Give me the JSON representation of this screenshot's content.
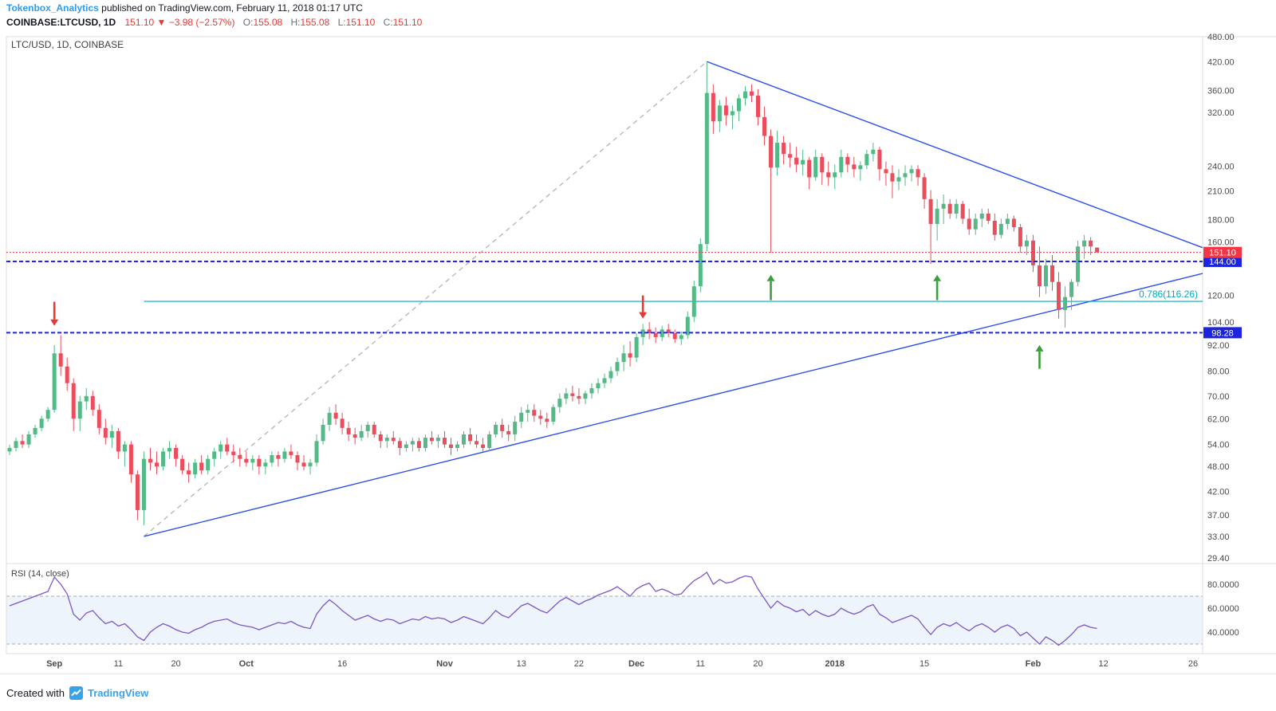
{
  "header": {
    "author": "Tokenbox_Analytics",
    "published": " published on TradingView.com, February 11, 2018 01:17 UTC"
  },
  "ticker_bar": {
    "symbol": "COINBASE:LTCUSD, 1D",
    "last": "151.10",
    "change": "▼ −3.98 (−2.57%)",
    "o_label": "O:",
    "o": "155.08",
    "h_label": "H:",
    "h": "155.08",
    "l_label": "L:",
    "l": "151.10",
    "c_label": "C:",
    "c": "151.10"
  },
  "chart": {
    "legend": "LTC/USD, 1D, COINBASE",
    "rsi_legend": "RSI (14, close)"
  },
  "footer": {
    "created_with": "Created with",
    "brand": "TradingView"
  },
  "colors": {
    "author_blue": "#2d9bf0",
    "value_red": "#e53935",
    "brand_blue": "#37a3eb",
    "candle_up": "#53b987",
    "candle_down": "#eb4d5c",
    "trend_blue": "#2b50e8",
    "level_blue": "#1c24e0",
    "price_line_red": "#f23645",
    "fib_teal": "#00a9c0",
    "rsi_line": "#7e57c2",
    "rsi_band": "#eef4fb",
    "axis_text": "#4a4a4a",
    "border": "#dcdcdc"
  },
  "chart_data": {
    "type": "candlestick",
    "symbol": "LTC/USD",
    "exchange": "COINBASE",
    "interval": "1D",
    "price_scale": "log",
    "start_date": "2017-08-25",
    "price_ticks": [
      480,
      420,
      360,
      320,
      240,
      210,
      180,
      160,
      120,
      104,
      92,
      80,
      70,
      62,
      54,
      48,
      42,
      37,
      33,
      29.4
    ],
    "candles": [
      [
        52,
        54,
        51,
        53
      ],
      [
        53,
        56,
        52,
        55
      ],
      [
        55,
        57,
        53,
        54
      ],
      [
        54,
        58,
        53,
        57
      ],
      [
        57,
        60,
        56,
        59
      ],
      [
        59,
        63,
        58,
        62
      ],
      [
        62,
        66,
        61,
        65
      ],
      [
        65,
        92,
        64,
        88
      ],
      [
        88,
        97,
        78,
        82
      ],
      [
        82,
        86,
        72,
        75
      ],
      [
        75,
        77,
        58,
        62
      ],
      [
        62,
        70,
        58,
        68
      ],
      [
        68,
        73,
        65,
        70
      ],
      [
        70,
        72,
        63,
        65
      ],
      [
        65,
        67,
        57,
        59
      ],
      [
        59,
        62,
        54,
        56
      ],
      [
        56,
        60,
        53,
        58
      ],
      [
        58,
        59,
        50,
        52
      ],
      [
        52,
        55,
        48,
        54
      ],
      [
        54,
        55,
        44,
        46
      ],
      [
        46,
        47,
        36,
        38
      ],
      [
        38,
        52,
        35,
        50
      ],
      [
        50,
        53,
        47,
        49
      ],
      [
        49,
        52,
        46,
        48
      ],
      [
        48,
        53,
        47,
        52
      ],
      [
        52,
        55,
        50,
        53
      ],
      [
        53,
        54,
        48,
        50
      ],
      [
        50,
        51,
        46,
        47
      ],
      [
        47,
        49,
        44,
        46
      ],
      [
        46,
        50,
        45,
        49
      ],
      [
        49,
        51,
        46,
        47
      ],
      [
        47,
        51,
        46,
        50
      ],
      [
        50,
        53,
        48,
        52
      ],
      [
        52,
        55,
        50,
        54
      ],
      [
        54,
        56,
        51,
        52
      ],
      [
        52,
        54,
        49,
        51
      ],
      [
        51,
        53,
        48,
        50
      ],
      [
        50,
        52,
        48,
        49
      ],
      [
        49,
        51,
        47,
        50
      ],
      [
        50,
        51,
        46,
        48
      ],
      [
        48,
        50,
        46,
        49
      ],
      [
        49,
        52,
        48,
        51
      ],
      [
        51,
        52,
        48,
        50
      ],
      [
        50,
        53,
        49,
        52
      ],
      [
        52,
        54,
        50,
        51
      ],
      [
        51,
        52,
        47,
        49
      ],
      [
        49,
        51,
        47,
        48
      ],
      [
        48,
        50,
        46,
        49
      ],
      [
        49,
        57,
        48,
        55
      ],
      [
        55,
        62,
        54,
        60
      ],
      [
        60,
        66,
        58,
        64
      ],
      [
        64,
        67,
        60,
        62
      ],
      [
        62,
        64,
        57,
        59
      ],
      [
        59,
        61,
        55,
        57
      ],
      [
        57,
        59,
        54,
        56
      ],
      [
        56,
        60,
        55,
        58
      ],
      [
        58,
        61,
        56,
        60
      ],
      [
        60,
        61,
        56,
        57
      ],
      [
        57,
        58,
        53,
        55
      ],
      [
        55,
        57,
        53,
        56
      ],
      [
        56,
        58,
        54,
        55
      ],
      [
        55,
        56,
        51,
        53
      ],
      [
        53,
        55,
        52,
        54
      ],
      [
        54,
        56,
        52,
        55
      ],
      [
        55,
        56,
        52,
        53
      ],
      [
        53,
        57,
        52,
        56
      ],
      [
        56,
        58,
        54,
        55
      ],
      [
        55,
        57,
        53,
        56
      ],
      [
        56,
        58,
        53,
        54
      ],
      [
        54,
        56,
        51,
        53
      ],
      [
        53,
        55,
        52,
        54
      ],
      [
        54,
        58,
        53,
        57
      ],
      [
        57,
        59,
        54,
        55
      ],
      [
        55,
        57,
        53,
        54
      ],
      [
        54,
        56,
        52,
        53
      ],
      [
        53,
        58,
        52,
        57
      ],
      [
        57,
        61,
        56,
        60
      ],
      [
        60,
        62,
        56,
        58
      ],
      [
        58,
        60,
        55,
        57
      ],
      [
        57,
        63,
        55,
        61
      ],
      [
        61,
        66,
        59,
        64
      ],
      [
        64,
        67,
        61,
        65
      ],
      [
        65,
        67,
        61,
        63
      ],
      [
        63,
        65,
        60,
        62
      ],
      [
        62,
        64,
        59,
        61
      ],
      [
        61,
        67,
        60,
        66
      ],
      [
        66,
        71,
        64,
        69
      ],
      [
        69,
        73,
        67,
        71
      ],
      [
        71,
        74,
        68,
        70
      ],
      [
        70,
        73,
        67,
        69
      ],
      [
        69,
        72,
        67,
        71
      ],
      [
        71,
        75,
        69,
        73
      ],
      [
        73,
        77,
        71,
        75
      ],
      [
        75,
        79,
        73,
        77
      ],
      [
        77,
        82,
        75,
        80
      ],
      [
        80,
        86,
        78,
        84
      ],
      [
        84,
        92,
        80,
        88
      ],
      [
        88,
        94,
        82,
        86
      ],
      [
        86,
        98,
        84,
        96
      ],
      [
        96,
        103,
        92,
        100
      ],
      [
        100,
        104,
        95,
        98
      ],
      [
        98,
        101,
        93,
        96
      ],
      [
        96,
        102,
        94,
        100
      ],
      [
        100,
        103,
        96,
        98
      ],
      [
        98,
        100,
        93,
        95
      ],
      [
        95,
        99,
        92,
        97
      ],
      [
        97,
        110,
        95,
        107
      ],
      [
        107,
        130,
        104,
        126
      ],
      [
        126,
        163,
        122,
        158
      ],
      [
        158,
        420,
        152,
        355
      ],
      [
        355,
        372,
        285,
        305
      ],
      [
        305,
        342,
        288,
        332
      ],
      [
        332,
        348,
        298,
        315
      ],
      [
        315,
        332,
        292,
        322
      ],
      [
        322,
        352,
        305,
        345
      ],
      [
        345,
        368,
        332,
        358
      ],
      [
        358,
        372,
        338,
        350
      ],
      [
        350,
        362,
        298,
        312
      ],
      [
        312,
        330,
        268,
        282
      ],
      [
        282,
        292,
        151,
        238
      ],
      [
        238,
        290,
        228,
        272
      ],
      [
        272,
        282,
        242,
        256
      ],
      [
        256,
        272,
        238,
        251
      ],
      [
        251,
        266,
        232,
        242
      ],
      [
        242,
        262,
        228,
        248
      ],
      [
        248,
        252,
        212,
        226
      ],
      [
        226,
        262,
        222,
        252
      ],
      [
        252,
        257,
        217,
        232
      ],
      [
        232,
        246,
        216,
        226
      ],
      [
        226,
        242,
        212,
        232
      ],
      [
        232,
        262,
        226,
        252
      ],
      [
        252,
        257,
        232,
        242
      ],
      [
        242,
        252,
        226,
        236
      ],
      [
        236,
        246,
        222,
        241
      ],
      [
        241,
        262,
        236,
        256
      ],
      [
        256,
        272,
        246,
        262
      ],
      [
        262,
        266,
        222,
        236
      ],
      [
        236,
        246,
        216,
        231
      ],
      [
        231,
        241,
        202,
        221
      ],
      [
        221,
        236,
        211,
        226
      ],
      [
        226,
        241,
        216,
        231
      ],
      [
        231,
        241,
        221,
        236
      ],
      [
        236,
        241,
        216,
        226
      ],
      [
        226,
        231,
        191,
        201
      ],
      [
        201,
        211,
        142,
        176
      ],
      [
        176,
        201,
        161,
        191
      ],
      [
        191,
        206,
        176,
        196
      ],
      [
        196,
        201,
        181,
        186
      ],
      [
        186,
        201,
        181,
        196
      ],
      [
        196,
        199,
        176,
        181
      ],
      [
        181,
        191,
        166,
        171
      ],
      [
        171,
        186,
        166,
        181
      ],
      [
        181,
        191,
        173,
        186
      ],
      [
        186,
        191,
        176,
        179
      ],
      [
        179,
        186,
        161,
        166
      ],
      [
        166,
        181,
        163,
        176
      ],
      [
        176,
        186,
        171,
        181
      ],
      [
        181,
        184,
        169,
        173
      ],
      [
        173,
        176,
        151,
        156
      ],
      [
        156,
        166,
        149,
        161
      ],
      [
        161,
        166,
        136,
        141
      ],
      [
        141,
        156,
        119,
        126
      ],
      [
        126,
        146,
        121,
        141
      ],
      [
        141,
        149,
        123,
        129
      ],
      [
        129,
        136,
        106,
        111
      ],
      [
        111,
        126,
        101,
        119
      ],
      [
        119,
        131,
        111,
        129
      ],
      [
        129,
        161,
        126,
        156
      ],
      [
        156,
        166,
        146,
        161
      ],
      [
        161,
        164,
        149,
        156
      ],
      [
        155.08,
        155.08,
        151.1,
        151.1
      ]
    ],
    "rsi_period": "14, close",
    "rsi": [
      62,
      64,
      66,
      68,
      70,
      72,
      74,
      86,
      80,
      72,
      55,
      50,
      56,
      58,
      52,
      47,
      49,
      45,
      47,
      42,
      36,
      33,
      40,
      44,
      47,
      45,
      42,
      40,
      39,
      42,
      44,
      47,
      49,
      50,
      51,
      48,
      46,
      45,
      44,
      42,
      44,
      46,
      48,
      47,
      49,
      46,
      44,
      43,
      55,
      62,
      67,
      63,
      58,
      54,
      50,
      52,
      54,
      51,
      49,
      51,
      50,
      47,
      49,
      51,
      50,
      53,
      51,
      52,
      51,
      48,
      50,
      53,
      51,
      49,
      47,
      52,
      58,
      54,
      52,
      57,
      62,
      64,
      61,
      58,
      56,
      61,
      66,
      69,
      66,
      63,
      66,
      68,
      71,
      73,
      75,
      78,
      74,
      70,
      76,
      79,
      81,
      74,
      76,
      74,
      71,
      72,
      78,
      83,
      86,
      90,
      80,
      84,
      81,
      82,
      85,
      87,
      86,
      76,
      68,
      60,
      66,
      62,
      60,
      57,
      59,
      54,
      58,
      55,
      53,
      55,
      60,
      57,
      55,
      57,
      61,
      63,
      55,
      52,
      48,
      50,
      52,
      54,
      51,
      44,
      38,
      44,
      47,
      45,
      48,
      44,
      41,
      45,
      47,
      44,
      40,
      44,
      46,
      43,
      37,
      40,
      35,
      30,
      36,
      33,
      29,
      33,
      38,
      44,
      46,
      44,
      43
    ],
    "rsi_ticks": [
      80,
      60,
      40
    ],
    "rsi_band": [
      30,
      70
    ],
    "time_labels": [
      {
        "i": 7,
        "label": "Sep",
        "bold": true
      },
      {
        "i": 17,
        "label": "11"
      },
      {
        "i": 26,
        "label": "20"
      },
      {
        "i": 37,
        "label": "Oct",
        "bold": true
      },
      {
        "i": 52,
        "label": "16"
      },
      {
        "i": 68,
        "label": "Nov",
        "bold": true
      },
      {
        "i": 80,
        "label": "13"
      },
      {
        "i": 89,
        "label": "22"
      },
      {
        "i": 98,
        "label": "Dec",
        "bold": true
      },
      {
        "i": 108,
        "label": "11"
      },
      {
        "i": 117,
        "label": "20"
      },
      {
        "i": 129,
        "label": "2018",
        "bold": true
      },
      {
        "i": 143,
        "label": "15"
      },
      {
        "i": 160,
        "label": "Feb",
        "bold": true
      },
      {
        "i": 171,
        "label": "12"
      },
      {
        "i": 185,
        "label": "26"
      }
    ],
    "levels": [
      {
        "price": 144,
        "label": "144.00",
        "style": "dashed",
        "color": "#1c24e0"
      },
      {
        "price": 98.28,
        "label": "98.28",
        "style": "dashed",
        "color": "#1c24e0"
      },
      {
        "price": 151.1,
        "label": "151.10",
        "style": "dotted",
        "color": "#f23645"
      }
    ],
    "fib": {
      "label": "0.786(116.26)",
      "price": 116.26,
      "from_index": 21,
      "color": "#00a9c0"
    },
    "trendlines": [
      {
        "from": [
          21,
          33
        ],
        "to": [
          109,
          420
        ],
        "color": "#b8b8b8",
        "style": "dashed"
      },
      {
        "from": [
          21,
          33
        ],
        "to": [
          186.5,
          135
        ],
        "color": "#2b50e8",
        "style": "solid"
      },
      {
        "from": [
          109,
          420
        ],
        "to": [
          186.5,
          155
        ],
        "color": "#2b50e8",
        "style": "solid"
      }
    ],
    "arrows": [
      {
        "i": 7,
        "from": 116,
        "to": 102,
        "color": "#e53935",
        "dir": "down"
      },
      {
        "i": 99,
        "from": 120,
        "to": 106,
        "color": "#e53935",
        "dir": "down"
      },
      {
        "i": 119,
        "from": 117,
        "to": 134,
        "color": "#3d9c3d",
        "dir": "up"
      },
      {
        "i": 145,
        "from": 117,
        "to": 134,
        "color": "#3d9c3d",
        "dir": "up"
      },
      {
        "i": 161,
        "from": 81,
        "to": 92,
        "color": "#3d9c3d",
        "dir": "up"
      }
    ]
  }
}
